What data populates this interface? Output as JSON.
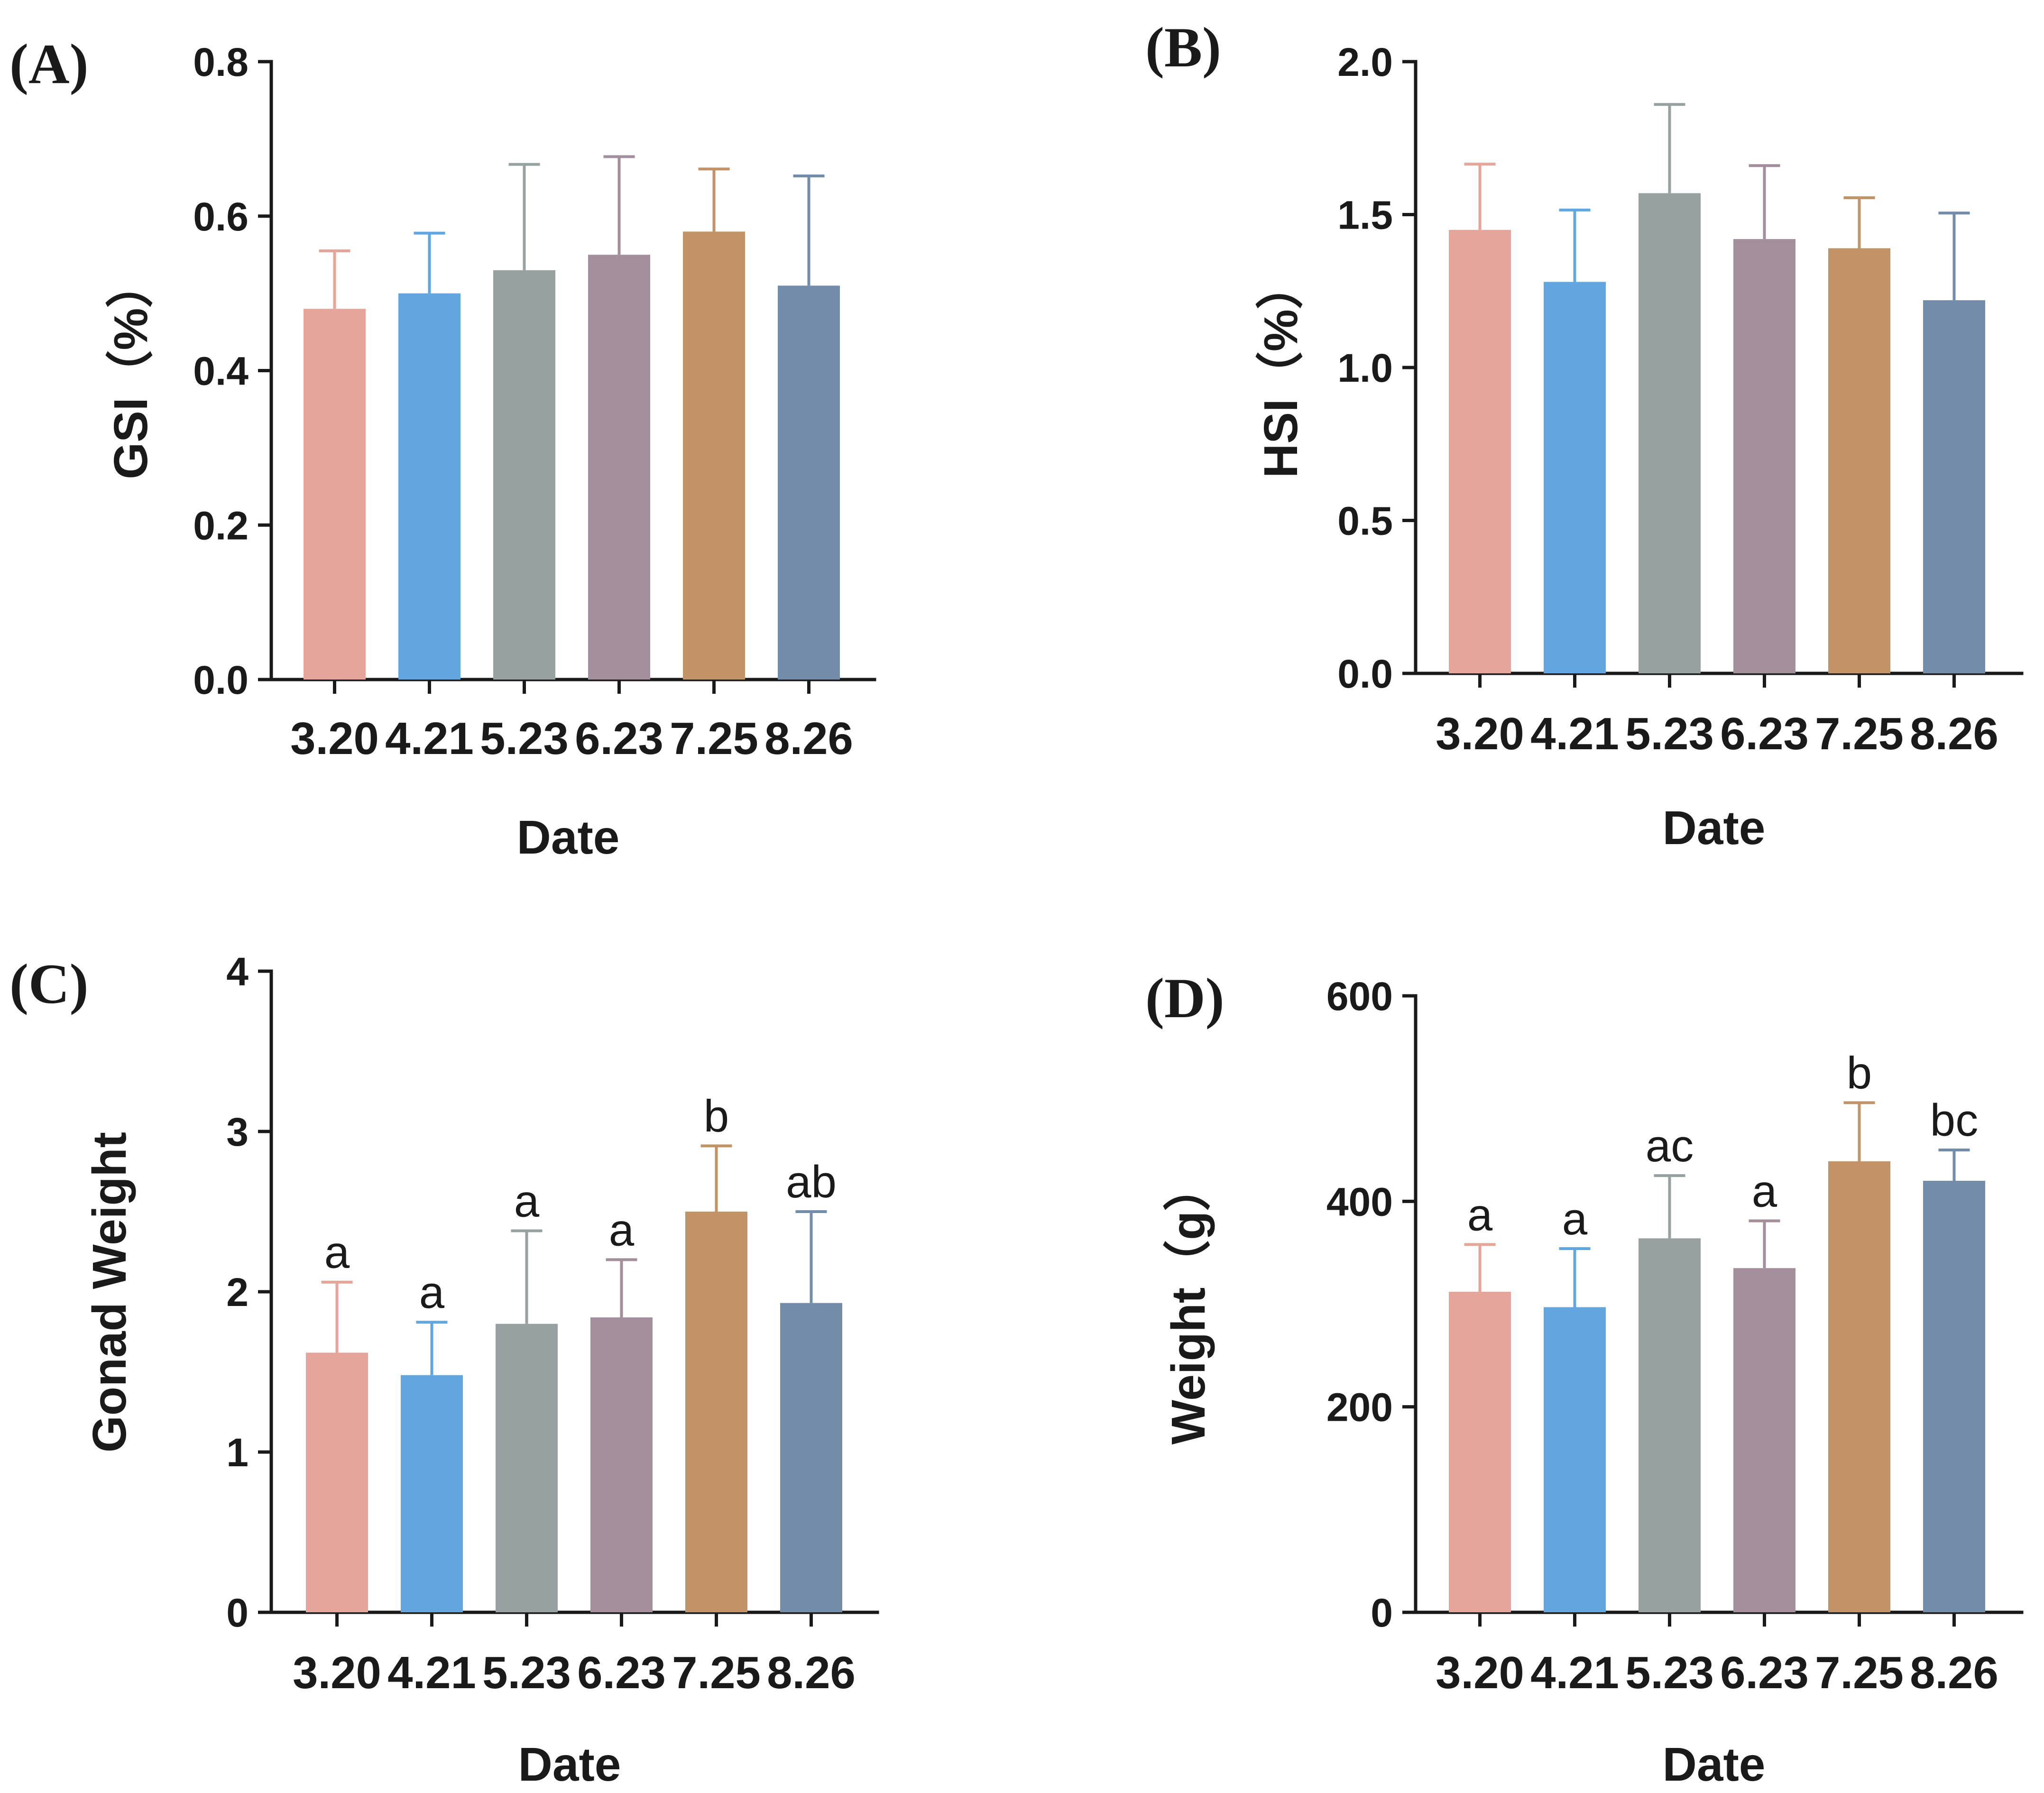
{
  "bar_colors": [
    "#e6a59b",
    "#62a6e0",
    "#98a1a2",
    "#a38e9c",
    "#c19367",
    "#728ca9"
  ],
  "chart_data": [
    {
      "type": "bar",
      "panel_label": "(A)",
      "title": "",
      "xlabel": "Date",
      "ylabel": "GSI（%）",
      "categories": [
        "3.20",
        "4.21",
        "5.23",
        "6.23",
        "7.25",
        "8.26"
      ],
      "values": [
        0.48,
        0.5,
        0.53,
        0.55,
        0.58,
        0.51
      ],
      "error_upper": [
        0.555,
        0.578,
        0.667,
        0.677,
        0.661,
        0.652
      ],
      "significance": [],
      "ylim": [
        0,
        0.8
      ],
      "yticks": [
        "0.0",
        "0.2",
        "0.4",
        "0.6",
        "0.8"
      ],
      "grid": false
    },
    {
      "type": "bar",
      "panel_label": "(B)",
      "title": "",
      "xlabel": "Date",
      "ylabel": "HSI（%）",
      "categories": [
        "3.20",
        "4.21",
        "5.23",
        "6.23",
        "7.25",
        "8.26"
      ],
      "values": [
        1.45,
        1.28,
        1.57,
        1.42,
        1.39,
        1.22
      ],
      "error_upper": [
        1.665,
        1.515,
        1.86,
        1.66,
        1.555,
        1.505
      ],
      "significance": [],
      "ylim": [
        0,
        2.0
      ],
      "yticks": [
        "0.0",
        "0.5",
        "1.0",
        "1.5",
        "2.0"
      ],
      "grid": false
    },
    {
      "type": "bar",
      "panel_label": "(C)",
      "title": "",
      "xlabel": "Date",
      "ylabel": "Gonad Weight",
      "categories": [
        "3.20",
        "4.21",
        "5.23",
        "6.23",
        "7.25",
        "8.26"
      ],
      "values": [
        1.62,
        1.48,
        1.8,
        1.84,
        2.5,
        1.93
      ],
      "error_upper": [
        2.06,
        1.81,
        2.38,
        2.2,
        2.91,
        2.5
      ],
      "significance": [
        "a",
        "a",
        "a",
        "a",
        "b",
        "ab"
      ],
      "ylim": [
        0,
        4
      ],
      "yticks": [
        "0",
        "1",
        "2",
        "3",
        "4"
      ],
      "grid": false
    },
    {
      "type": "bar",
      "panel_label": "(D)",
      "title": "",
      "xlabel": "Date",
      "ylabel": "Weight（g）",
      "categories": [
        "3.20",
        "4.21",
        "5.23",
        "6.23",
        "7.25",
        "8.26"
      ],
      "values": [
        312,
        297,
        364,
        335,
        439,
        420
      ],
      "error_upper": [
        358,
        354,
        425,
        381,
        496,
        450
      ],
      "significance": [
        "a",
        "a",
        "ac",
        "a",
        "b",
        "bc"
      ],
      "ylim": [
        0,
        600
      ],
      "yticks": [
        "0",
        "200",
        "400",
        "600"
      ],
      "grid": false
    }
  ]
}
